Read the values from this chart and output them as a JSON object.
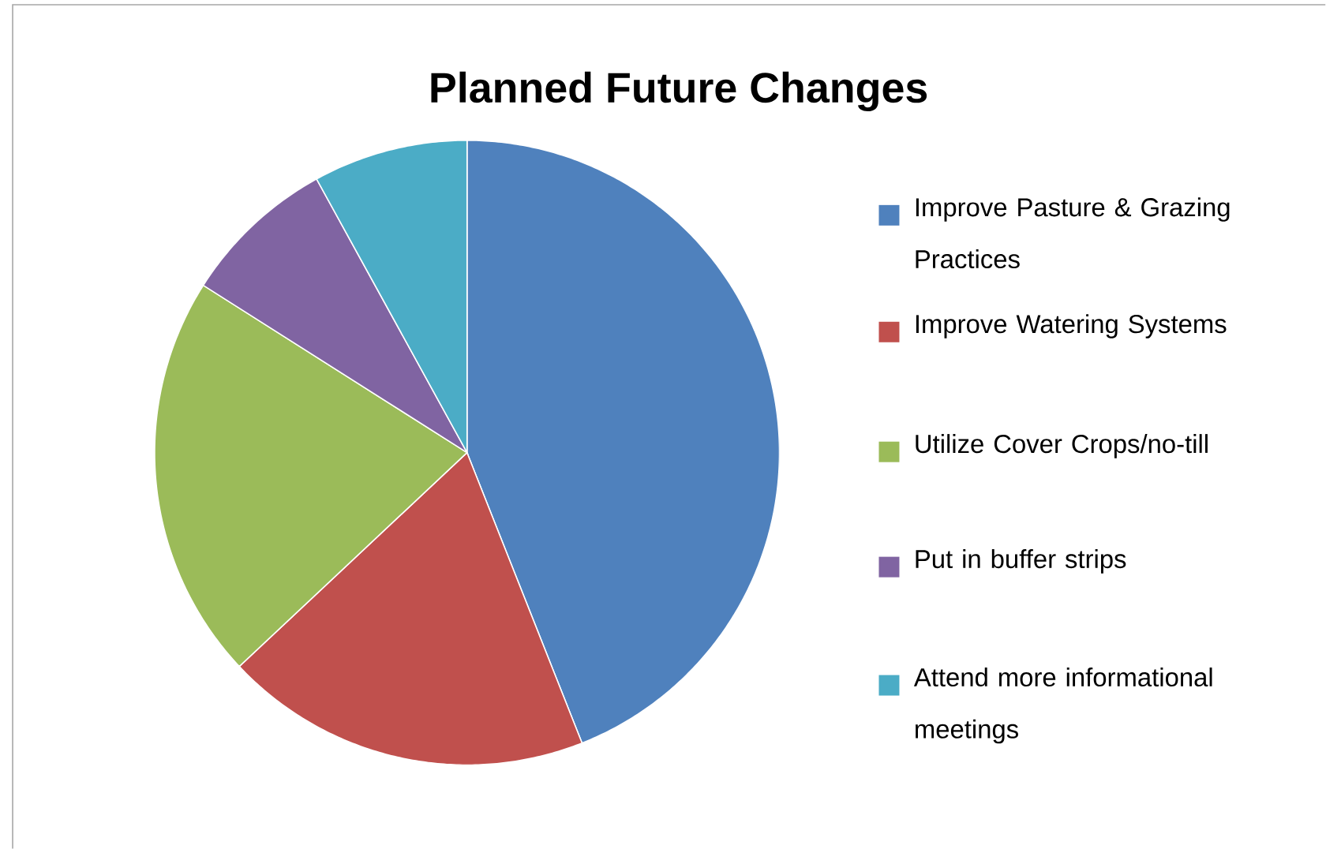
{
  "chart_data": {
    "type": "pie",
    "title": "Planned Future Changes",
    "categories": [
      "Improve Pasture & Grazing Practices",
      "Improve Watering Systems",
      "Utilize Cover Crops/no-till",
      "Put in buffer strips",
      "Attend more informational meetings"
    ],
    "values": [
      44,
      19,
      21,
      8,
      8
    ],
    "colors": [
      "#4f81bd",
      "#c0504d",
      "#9bbb59",
      "#8064a2",
      "#4bacc6"
    ],
    "legend": "right"
  }
}
